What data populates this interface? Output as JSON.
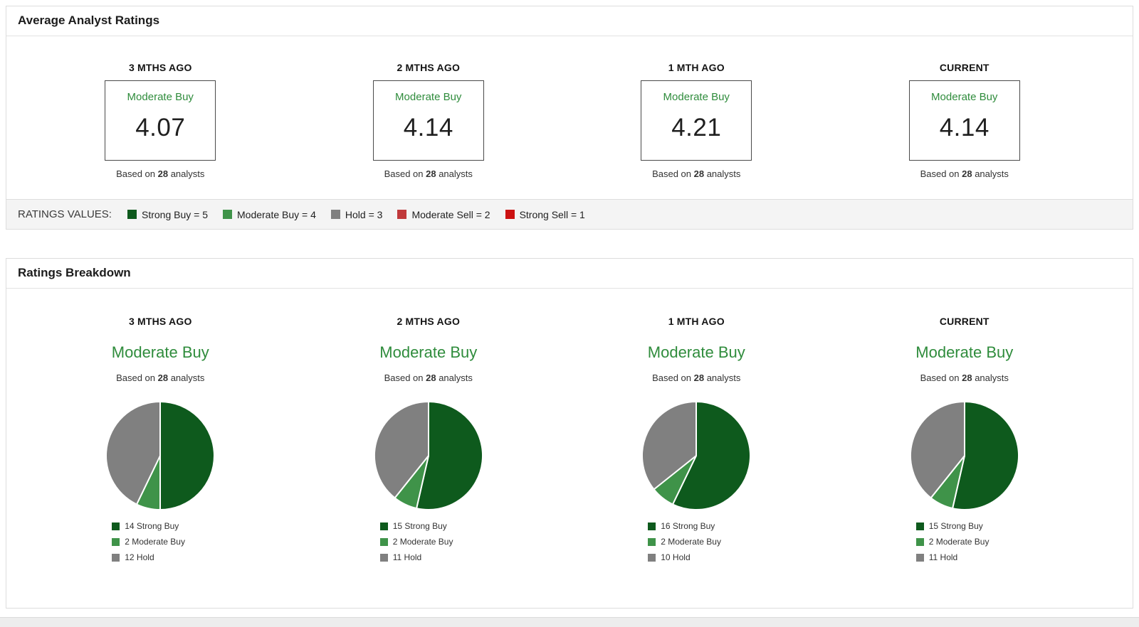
{
  "colors": {
    "strong_buy": "#0e5a1d",
    "moderate_buy": "#3f9349",
    "hold": "#808080",
    "moderate_sell": "#c0393b",
    "strong_sell": "#cc1212",
    "rating_text_green": "#2f8c3c"
  },
  "based_on": {
    "prefix": "Based on ",
    "count": "28",
    "suffix": " analysts"
  },
  "average_panel": {
    "title": "Average Analyst Ratings",
    "columns": [
      {
        "period": "3 MTHS AGO",
        "rating": "Moderate Buy",
        "value": "4.07"
      },
      {
        "period": "2 MTHS AGO",
        "rating": "Moderate Buy",
        "value": "4.14"
      },
      {
        "period": "1 MTH AGO",
        "rating": "Moderate Buy",
        "value": "4.21"
      },
      {
        "period": "CURRENT",
        "rating": "Moderate Buy",
        "value": "4.14"
      }
    ],
    "ratings_values": {
      "label": "RATINGS VALUES:",
      "items": [
        {
          "label": "Strong Buy = 5",
          "color": "#0e5a1d"
        },
        {
          "label": "Moderate Buy = 4",
          "color": "#3f9349"
        },
        {
          "label": "Hold = 3",
          "color": "#808080"
        },
        {
          "label": "Moderate Sell = 2",
          "color": "#c0393b"
        },
        {
          "label": "Strong Sell = 1",
          "color": "#cc1212"
        }
      ]
    }
  },
  "breakdown_panel": {
    "title": "Ratings Breakdown"
  },
  "chart_data": [
    {
      "type": "table",
      "title": "Average Analyst Ratings",
      "categories": [
        "3 MTHS AGO",
        "2 MTHS AGO",
        "1 MTH AGO",
        "CURRENT"
      ],
      "values": [
        4.07,
        4.14,
        4.21,
        4.14
      ],
      "consensus": [
        "Moderate Buy",
        "Moderate Buy",
        "Moderate Buy",
        "Moderate Buy"
      ],
      "analysts": 28,
      "scale": {
        "Strong Buy": 5,
        "Moderate Buy": 4,
        "Hold": 3,
        "Moderate Sell": 2,
        "Strong Sell": 1
      }
    },
    {
      "type": "pie",
      "period": "3 MTHS AGO",
      "rating": "Moderate Buy",
      "analysts": 28,
      "labels": [
        "Strong Buy",
        "Moderate Buy",
        "Hold"
      ],
      "values": [
        14,
        2,
        12
      ],
      "colors": [
        "#0e5a1d",
        "#3f9349",
        "#808080"
      ],
      "legend_position": "bottom"
    },
    {
      "type": "pie",
      "period": "2 MTHS AGO",
      "rating": "Moderate Buy",
      "analysts": 28,
      "labels": [
        "Strong Buy",
        "Moderate Buy",
        "Hold"
      ],
      "values": [
        15,
        2,
        11
      ],
      "colors": [
        "#0e5a1d",
        "#3f9349",
        "#808080"
      ],
      "legend_position": "bottom"
    },
    {
      "type": "pie",
      "period": "1 MTH AGO",
      "rating": "Moderate Buy",
      "analysts": 28,
      "labels": [
        "Strong Buy",
        "Moderate Buy",
        "Hold"
      ],
      "values": [
        16,
        2,
        10
      ],
      "colors": [
        "#0e5a1d",
        "#3f9349",
        "#808080"
      ],
      "legend_position": "bottom"
    },
    {
      "type": "pie",
      "period": "CURRENT",
      "rating": "Moderate Buy",
      "analysts": 28,
      "labels": [
        "Strong Buy",
        "Moderate Buy",
        "Hold"
      ],
      "values": [
        15,
        2,
        11
      ],
      "colors": [
        "#0e5a1d",
        "#3f9349",
        "#808080"
      ],
      "legend_position": "bottom"
    }
  ]
}
